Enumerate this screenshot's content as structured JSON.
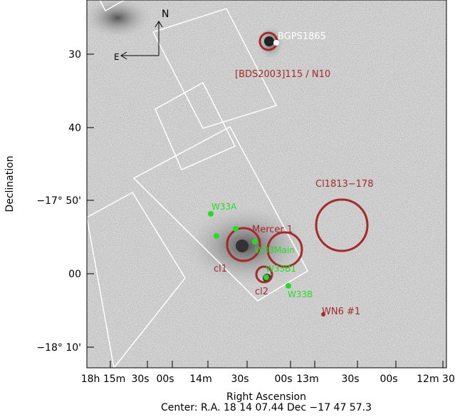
{
  "axes": {
    "y_title": "Declination",
    "x_title": "Right Ascension",
    "y_ticks": [
      "30",
      "40",
      "−17° 50'",
      "00",
      "−18° 10'"
    ],
    "x_ticks": [
      "18h 15m",
      "30s",
      "00s",
      "14m",
      "30s",
      "00s",
      "13m",
      "30s",
      "00s",
      "12m 30"
    ]
  },
  "compass": {
    "north": "N",
    "east": "E"
  },
  "annotations": {
    "bgps": "BGPS1865",
    "bds": "[BDS2003]115 / N10",
    "cl1813": "Cl1813−178",
    "mercer": "Mercer 1",
    "w33main": "W33Main",
    "w33a": "W33A",
    "w33b1": "W33B1",
    "w33b": "W33B",
    "cl1": "cl1",
    "cl2": "cl2",
    "wn6": "WN6 #1"
  },
  "footer": "Center:  R.A. 18 14 07.44     Dec  −17 47 57.3"
}
